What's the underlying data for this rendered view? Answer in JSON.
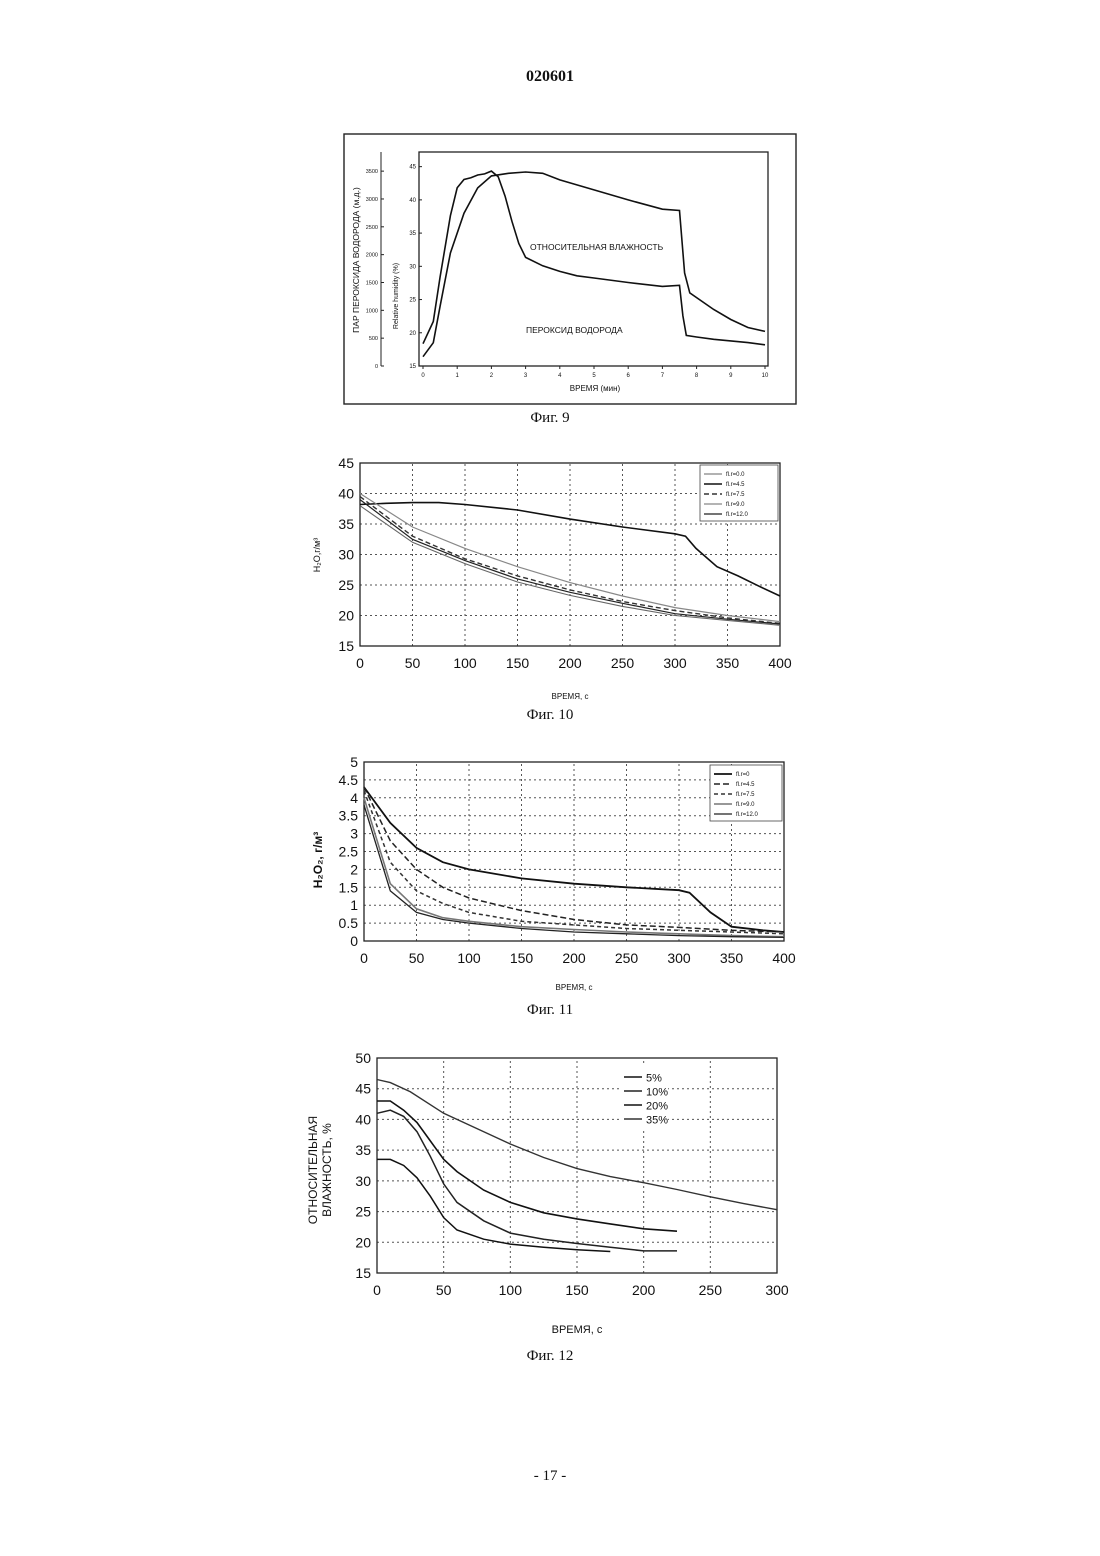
{
  "document": {
    "header": "020601",
    "footer": "- 17 -"
  },
  "figures": [
    {
      "caption": "Фиг. 9",
      "xlabel": "ВРЕМЯ (мин)",
      "ylabel_left": "ПАР ПЕРОКСИДА ВОДОРОДА (м.д.)",
      "ylabel_right": "Relative humidity (%)",
      "annotation_top": "ОТНОСИТЕЛЬНАЯ ВЛАЖНОСТЬ",
      "annotation_bottom": "ПЕРОКСИД ВОДОРОДА"
    },
    {
      "caption": "Фиг. 10",
      "xlabel": "ВРЕМЯ, с",
      "ylabel": "H₂O,г/м³"
    },
    {
      "caption": "Фиг. 11",
      "xlabel": "ВРЕМЯ, с",
      "ylabel": "H₂O₂, г/м³"
    },
    {
      "caption": "Фиг. 12",
      "xlabel": "ВРЕМЯ, с",
      "ylabel_line1": "ОТНОСИТЕЛЬНАЯ",
      "ylabel_line2": "ВЛАЖНОСТЬ, %"
    }
  ],
  "chart_data": [
    {
      "type": "line",
      "xlabel": "ВРЕМЯ (мин)",
      "xlim": [
        0,
        10
      ],
      "x_ticks": [
        0,
        1,
        2,
        3,
        4,
        5,
        6,
        7,
        8,
        9,
        10
      ],
      "y_left": {
        "ticks": [
          0,
          500,
          1000,
          1500,
          2000,
          2500,
          3000,
          3500
        ],
        "ylim": [
          0,
          3700
        ]
      },
      "y_right": {
        "ticks": [
          15,
          20,
          25,
          30,
          35,
          40,
          45
        ],
        "ylim": [
          15,
          46
        ]
      },
      "series": [
        {
          "name": "ОТНОСИТЕЛЬНАЯ ВЛАЖНОСТЬ",
          "axis": "right",
          "x": [
            0,
            0.3,
            0.5,
            0.8,
            1.2,
            1.6,
            2.0,
            2.5,
            3.0,
            3.5,
            4.0,
            5.0,
            6.0,
            7.0,
            7.5,
            7.65,
            7.8,
            8.5,
            9.0,
            9.5,
            10.0
          ],
          "y": [
            16.4,
            18.5,
            24.0,
            32.0,
            38.0,
            41.8,
            43.6,
            44.0,
            44.2,
            44.0,
            43.0,
            41.5,
            40.0,
            38.6,
            38.4,
            29.0,
            26.0,
            23.5,
            22.0,
            20.8,
            20.2
          ]
        },
        {
          "name": "ПЕРОКСИД ВОДОРОДА",
          "axis": "left",
          "x": [
            0,
            0.3,
            0.5,
            0.8,
            1.0,
            1.2,
            1.4,
            1.6,
            1.8,
            2.0,
            2.2,
            2.4,
            2.6,
            2.8,
            3.0,
            3.5,
            4.0,
            4.5,
            5.0,
            6.0,
            7.0,
            7.5,
            7.6,
            7.7,
            8.0,
            8.5,
            9.0,
            9.5,
            10.0
          ],
          "y": [
            400,
            800,
            1600,
            2700,
            3200,
            3350,
            3380,
            3430,
            3450,
            3500,
            3400,
            3050,
            2600,
            2200,
            1950,
            1800,
            1700,
            1620,
            1580,
            1500,
            1430,
            1450,
            900,
            550,
            520,
            480,
            450,
            420,
            380
          ]
        }
      ]
    },
    {
      "type": "line",
      "xlabel": "ВРЕМЯ, с",
      "ylabel": "H₂O,г/м³",
      "xlim": [
        0,
        400
      ],
      "ylim": [
        15,
        45
      ],
      "x_ticks": [
        0,
        50,
        100,
        150,
        200,
        250,
        300,
        350,
        400
      ],
      "y_ticks": [
        15,
        20,
        25,
        30,
        35,
        40,
        45
      ],
      "legend_position": "top-right",
      "series": [
        {
          "name": "fl.r=0.0",
          "x": [
            0,
            50,
            100,
            150,
            200,
            250,
            300,
            350,
            400
          ],
          "y": [
            38,
            32,
            28.5,
            25.5,
            23.3,
            21.5,
            20,
            19.2,
            18.4
          ]
        },
        {
          "name": "fl.r=4.5",
          "x": [
            0,
            25,
            50,
            75,
            100,
            150,
            200,
            250,
            300,
            310,
            320,
            340,
            360,
            380,
            400
          ],
          "y": [
            38.2,
            38.4,
            38.5,
            38.5,
            38.2,
            37.3,
            35.8,
            34.5,
            33.4,
            33.0,
            31.0,
            28.0,
            26.5,
            24.8,
            23.2
          ]
        },
        {
          "name": "fl.r=7.5",
          "x": [
            0,
            50,
            100,
            150,
            200,
            250,
            300,
            350,
            400
          ],
          "y": [
            39.5,
            33,
            29.3,
            26.5,
            24.2,
            22.3,
            20.8,
            19.6,
            18.7
          ]
        },
        {
          "name": "fl.r=9.0",
          "x": [
            0,
            50,
            100,
            150,
            200,
            250,
            300,
            350,
            400
          ],
          "y": [
            40,
            34.5,
            31,
            28,
            25.4,
            23.2,
            21.3,
            20,
            19
          ]
        },
        {
          "name": "fl.r=12.0",
          "x": [
            0,
            50,
            100,
            150,
            200,
            250,
            300,
            350,
            400
          ],
          "y": [
            39,
            32.5,
            29,
            26,
            23.8,
            22,
            20.3,
            19.4,
            18.6
          ]
        }
      ]
    },
    {
      "type": "line",
      "xlabel": "ВРЕМЯ, с",
      "ylabel": "H₂O₂, г/м³",
      "xlim": [
        0,
        400
      ],
      "ylim": [
        0,
        5
      ],
      "x_ticks": [
        0,
        50,
        100,
        150,
        200,
        250,
        300,
        350,
        400
      ],
      "y_ticks": [
        0,
        0.5,
        1,
        1.5,
        2,
        2.5,
        3,
        3.5,
        4,
        4.5,
        5
      ],
      "legend_position": "top-right",
      "series": [
        {
          "name": "fl.r=0",
          "x": [
            0,
            25,
            50,
            75,
            100,
            150,
            200,
            250,
            300,
            310,
            330,
            350,
            380,
            400
          ],
          "y": [
            4.3,
            3.3,
            2.6,
            2.2,
            2.0,
            1.75,
            1.6,
            1.5,
            1.42,
            1.35,
            0.8,
            0.4,
            0.3,
            0.25
          ]
        },
        {
          "name": "fl.r=4.5",
          "x": [
            0,
            25,
            50,
            75,
            100,
            150,
            200,
            250,
            300,
            350,
            400
          ],
          "y": [
            4.3,
            2.8,
            2.0,
            1.5,
            1.2,
            0.85,
            0.6,
            0.45,
            0.38,
            0.3,
            0.25
          ]
        },
        {
          "name": "fl.r=7.5",
          "x": [
            0,
            25,
            50,
            75,
            100,
            150,
            200,
            250,
            300,
            350,
            400
          ],
          "y": [
            4.2,
            2.2,
            1.4,
            1.05,
            0.8,
            0.55,
            0.45,
            0.35,
            0.3,
            0.25,
            0.2
          ]
        },
        {
          "name": "fl.r=9.0",
          "x": [
            0,
            25,
            50,
            75,
            100,
            150,
            200,
            250,
            300,
            350,
            400
          ],
          "y": [
            4.0,
            1.6,
            0.9,
            0.65,
            0.55,
            0.4,
            0.32,
            0.25,
            0.2,
            0.15,
            0.12
          ]
        },
        {
          "name": "fl.r=12.0",
          "x": [
            0,
            25,
            50,
            75,
            100,
            150,
            200,
            250,
            300,
            350,
            400
          ],
          "y": [
            3.8,
            1.4,
            0.8,
            0.6,
            0.5,
            0.35,
            0.25,
            0.2,
            0.15,
            0.12,
            0.1
          ]
        }
      ]
    },
    {
      "type": "line",
      "xlabel": "ВРЕМЯ, с",
      "ylabel": "ОТНОСИТЕЛЬНАЯ ВЛАЖНОСТЬ, %",
      "xlim": [
        0,
        300
      ],
      "ylim": [
        15,
        50
      ],
      "x_ticks": [
        0,
        50,
        100,
        150,
        200,
        250,
        300
      ],
      "y_ticks": [
        15,
        20,
        25,
        30,
        35,
        40,
        45,
        50
      ],
      "legend_position": "top-right",
      "series": [
        {
          "name": "5%",
          "x": [
            0,
            10,
            20,
            30,
            40,
            50,
            60,
            80,
            100,
            125,
            150,
            175
          ],
          "y": [
            33.5,
            33.5,
            32.5,
            30.5,
            27.5,
            24,
            22,
            20.5,
            19.7,
            19.2,
            18.8,
            18.5
          ]
        },
        {
          "name": "10%",
          "x": [
            0,
            10,
            20,
            30,
            40,
            50,
            60,
            80,
            100,
            125,
            150,
            175,
            200,
            225
          ],
          "y": [
            41,
            41.5,
            40.5,
            38,
            34,
            29.5,
            26.5,
            23.5,
            21.5,
            20.5,
            19.8,
            19.2,
            18.6,
            18.6
          ]
        },
        {
          "name": "20%",
          "x": [
            0,
            10,
            20,
            30,
            40,
            50,
            60,
            80,
            100,
            125,
            150,
            175,
            200,
            225
          ],
          "y": [
            43,
            43,
            41.5,
            39.5,
            36.5,
            33.5,
            31.5,
            28.5,
            26.5,
            24.8,
            23.8,
            23,
            22.2,
            21.8
          ]
        },
        {
          "name": "35%",
          "x": [
            0,
            10,
            25,
            50,
            75,
            100,
            125,
            150,
            175,
            200,
            225,
            250,
            275,
            300
          ],
          "y": [
            46.5,
            46,
            44.5,
            41,
            38.5,
            36,
            33.8,
            32,
            30.7,
            29.7,
            28.6,
            27.4,
            26.3,
            25.3
          ]
        }
      ]
    }
  ]
}
